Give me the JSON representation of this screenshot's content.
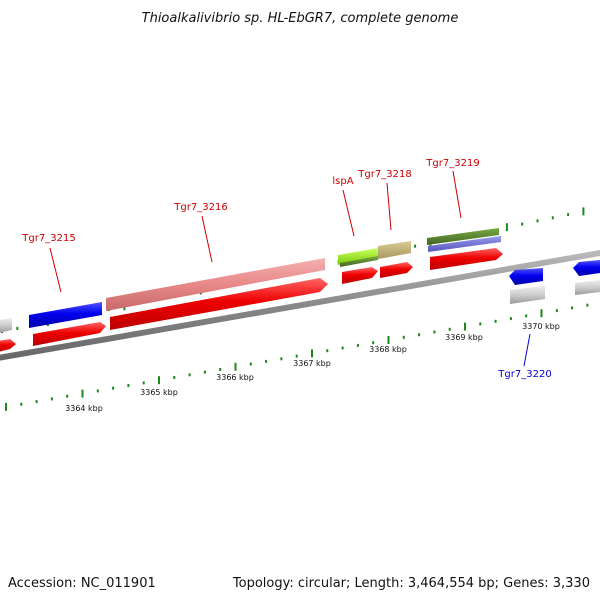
{
  "title": "Thioalkalivibrio sp. HL-EbGR7, complete genome",
  "footer": {
    "accession": "Accession: NC_011901",
    "summary": "Topology: circular; Length: 3,464,554 bp; Genes: 3,330"
  },
  "ticks": [
    "3364 kbp",
    "3365 kbp",
    "3366 kbp",
    "3367 kbp",
    "3368 kbp",
    "3369 kbp",
    "3370 kbp"
  ],
  "genes": [
    {
      "name": "Tgr7_3215",
      "color": "#cc0000"
    },
    {
      "name": "Tgr7_3216",
      "color": "#cc0000"
    },
    {
      "name": "lspA",
      "color": "#cc0000"
    },
    {
      "name": "Tgr7_3218",
      "color": "#cc0000"
    },
    {
      "name": "Tgr7_3219",
      "color": "#cc0000"
    },
    {
      "name": "Tgr7_3220",
      "color": "#0000cc"
    }
  ],
  "colors": {
    "forward_cds": "#ee0000",
    "reverse_cds": "#0000ee",
    "backbone": "#888888",
    "ticks": "#1a8a1a",
    "rna": "#aaaaaa"
  }
}
